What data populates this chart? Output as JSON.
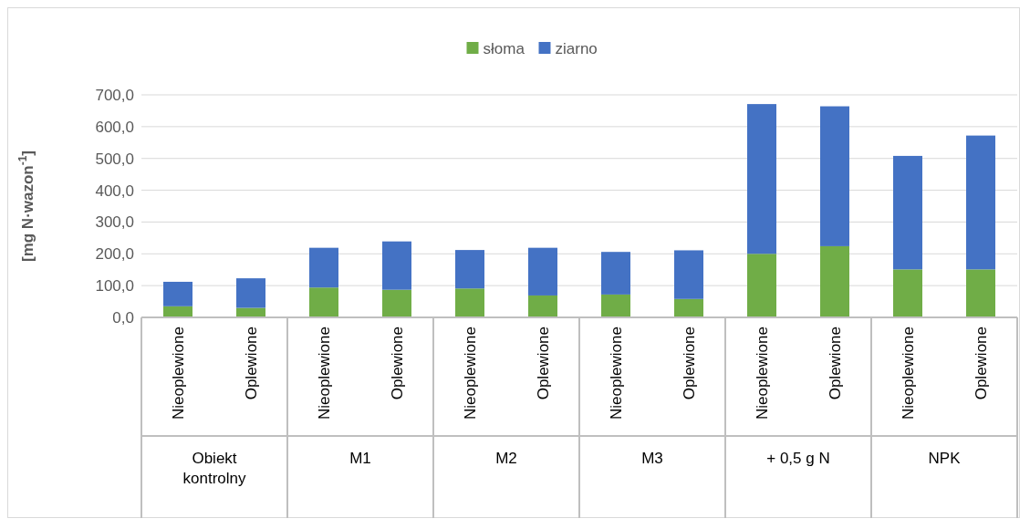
{
  "chart_data": {
    "type": "bar",
    "stacked": true,
    "ylabel": "[mg N·wazon$^{-1}$]",
    "categories": [
      "Nieoplewione",
      "Oplewione",
      "Nieoplewione",
      "Oplewione",
      "Nieoplewione",
      "Oplewione",
      "Nieoplewione",
      "Oplewione",
      "Nieoplewione",
      "Oplewione",
      "Nieoplewione",
      "Oplewione"
    ],
    "annotations": [
      "Obiekt kontrolny",
      "M1",
      "M2",
      "M3",
      "+ 0,5 g N",
      "NPK"
    ],
    "series": [
      {
        "name": "słoma",
        "color": "#70ad47",
        "values": [
          35,
          30,
          94,
          87,
          91,
          69,
          72,
          58,
          200,
          224,
          151,
          151
        ]
      },
      {
        "name": "ziarno",
        "color": "#4472c4",
        "values": [
          77,
          93,
          125,
          152,
          121,
          150,
          134,
          153,
          471,
          440,
          357,
          421
        ]
      }
    ],
    "ylim": [
      0,
      700
    ],
    "yticks": [
      {
        "value": 0,
        "label": "0,0"
      },
      {
        "value": 100,
        "label": "100,0"
      },
      {
        "value": 200,
        "label": "200,0"
      },
      {
        "value": 300,
        "label": "300,0"
      },
      {
        "value": 400,
        "label": "400,0"
      },
      {
        "value": 500,
        "label": "500,0"
      },
      {
        "value": 600,
        "label": "600,0"
      },
      {
        "value": 700,
        "label": "700,0"
      }
    ],
    "grid": "y",
    "legend": "top"
  }
}
